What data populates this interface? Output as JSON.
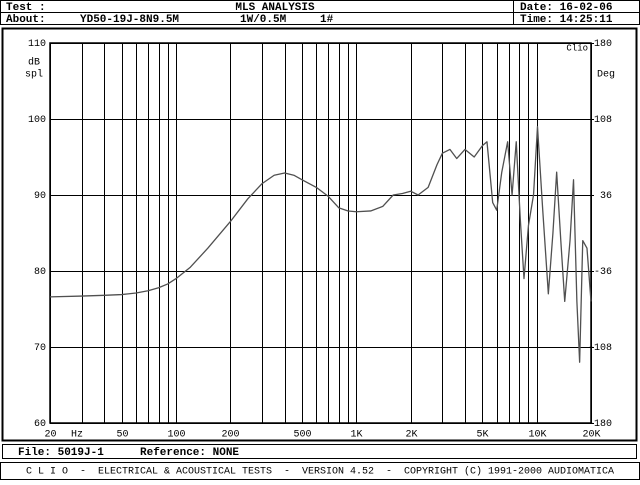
{
  "header": {
    "test_label": "Test :",
    "analysis": "MLS ANALYSIS",
    "date": "Date: 16-02-06",
    "about_label": "About:",
    "device": "YD50-19J-8N9.5M",
    "level": "1W/0.5M",
    "sample": "1#",
    "time": "Time: 14:25:11"
  },
  "footer": {
    "file": "File: 5019J-1",
    "reference": "Reference: NONE",
    "banner": "C L I O  -  ELECTRICAL & ACOUSTICAL TESTS  -  VERSION 4.52  -  COPYRIGHT (C) 1991-2000 AUDIOMATICA"
  },
  "chart_data": {
    "type": "line",
    "y_label_top": "dB",
    "y_label_bottom": "spl",
    "y2_label": "Deg",
    "x_label": "Hz",
    "brand": "Clio",
    "log_x": true,
    "grid": true,
    "xlim": [
      20,
      20000
    ],
    "ylim": [
      60,
      110
    ],
    "y2lim": [
      -180,
      180
    ],
    "xticks": [
      20,
      50,
      100,
      200,
      500,
      {
        "value": 1000,
        "label": "1K"
      },
      {
        "value": 2000,
        "label": "2K"
      },
      {
        "value": 5000,
        "label": "5K"
      },
      {
        "value": 10000,
        "label": "10K"
      },
      {
        "value": 20000,
        "label": "20K"
      }
    ],
    "x_minor_ticks": [
      30,
      40,
      60,
      70,
      80,
      90,
      300,
      400,
      600,
      700,
      800,
      900,
      3000,
      4000,
      6000,
      7000,
      8000,
      9000
    ],
    "yticks": [
      60,
      70,
      80,
      90,
      100,
      110
    ],
    "y2ticks": [
      -180,
      -108,
      -36,
      36,
      108,
      180
    ],
    "x": [
      20,
      30,
      40,
      50,
      60,
      70,
      80,
      90,
      100,
      120,
      150,
      200,
      250,
      300,
      350,
      400,
      450,
      500,
      600,
      700,
      800,
      900,
      1000,
      1200,
      1400,
      1600,
      1800,
      2000,
      2200,
      2500,
      2800,
      3000,
      3300,
      3600,
      4000,
      4500,
      5000,
      5300,
      5700,
      6000,
      6400,
      6900,
      7300,
      7700,
      8100,
      8500,
      9000,
      9600,
      10100,
      10800,
      11600,
      12300,
      12900,
      13600,
      14300,
      15300,
      16000,
      16700,
      17300,
      18000,
      19000,
      20000
    ],
    "series": [
      {
        "name": "SPL",
        "color": "#505050",
        "values": [
          76.6,
          76.7,
          76.8,
          76.9,
          77.1,
          77.4,
          77.8,
          78.3,
          79,
          80.5,
          83,
          86.5,
          89.5,
          91.5,
          92.6,
          92.9,
          92.6,
          92,
          91,
          89.8,
          88.3,
          87.9,
          87.8,
          87.9,
          88.5,
          90,
          90.2,
          90.5,
          90,
          91,
          94,
          95.5,
          96,
          94.8,
          96,
          95,
          96.5,
          97,
          89,
          88,
          93,
          97,
          90,
          97,
          87,
          79,
          86,
          90,
          99,
          88,
          77,
          85,
          93,
          84,
          76,
          84,
          92,
          76,
          68,
          84,
          83,
          76
        ]
      }
    ]
  }
}
